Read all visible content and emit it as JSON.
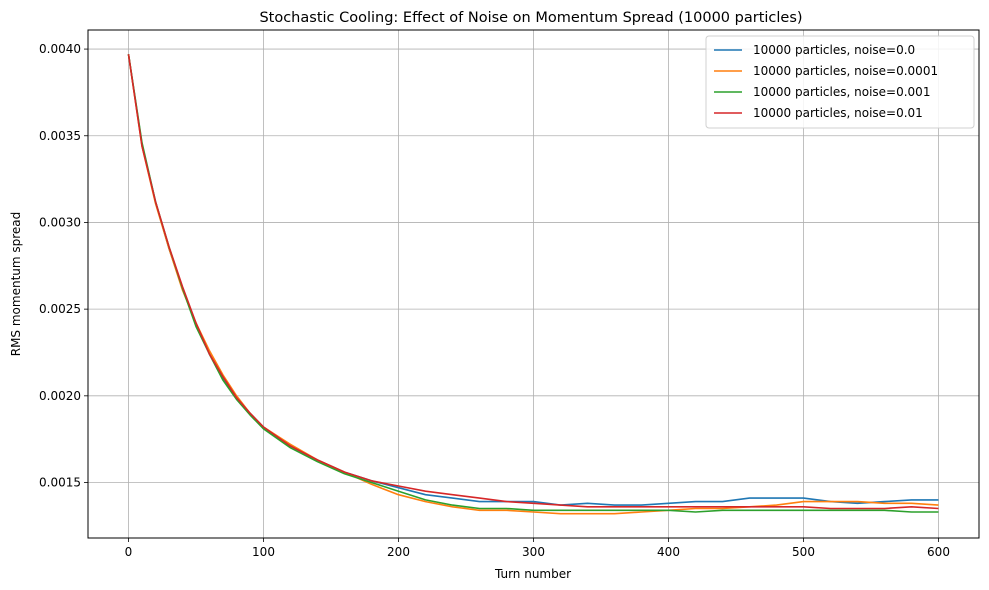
{
  "chart_data": {
    "type": "line",
    "title": "Stochastic Cooling: Effect of Noise on Momentum Spread (10000 particles)",
    "xlabel": "Turn number",
    "ylabel": "RMS momentum spread",
    "xlim": [
      -30,
      630
    ],
    "ylim": [
      0.00118,
      0.00411
    ],
    "xticks": [
      0,
      100,
      200,
      300,
      400,
      500,
      600
    ],
    "yticks": [
      0.0015,
      0.002,
      0.0025,
      0.003,
      0.0035,
      0.004
    ],
    "ytick_labels": [
      "0.0015",
      "0.0020",
      "0.0025",
      "0.0030",
      "0.0035",
      "0.0040"
    ],
    "grid": true,
    "legend": "top-right",
    "series": [
      {
        "name": "10000 particles, noise=0.0",
        "color": "#1f77b4",
        "x": [
          0,
          10,
          20,
          30,
          40,
          50,
          60,
          70,
          80,
          90,
          100,
          120,
          140,
          160,
          180,
          200,
          220,
          240,
          260,
          280,
          300,
          320,
          340,
          360,
          380,
          400,
          420,
          440,
          460,
          480,
          500,
          520,
          540,
          560,
          580,
          600
        ],
        "y": [
          0.00397,
          0.00345,
          0.00312,
          0.00285,
          0.00262,
          0.00241,
          0.00224,
          0.0021,
          0.00199,
          0.0019,
          0.00182,
          0.00171,
          0.00163,
          0.00156,
          0.00151,
          0.00147,
          0.00143,
          0.00141,
          0.00139,
          0.00139,
          0.00139,
          0.00137,
          0.00138,
          0.00137,
          0.00137,
          0.00138,
          0.00139,
          0.00139,
          0.00141,
          0.00141,
          0.00141,
          0.00139,
          0.00138,
          0.00139,
          0.0014,
          0.0014
        ]
      },
      {
        "name": "10000 particles, noise=0.0001",
        "color": "#ff7f0e",
        "x": [
          0,
          10,
          20,
          30,
          40,
          50,
          60,
          70,
          80,
          90,
          100,
          120,
          140,
          160,
          180,
          200,
          220,
          240,
          260,
          280,
          300,
          320,
          340,
          360,
          380,
          400,
          420,
          440,
          460,
          480,
          500,
          520,
          540,
          560,
          580,
          600
        ],
        "y": [
          0.00397,
          0.00344,
          0.00311,
          0.00285,
          0.00261,
          0.00242,
          0.00226,
          0.00212,
          0.002,
          0.0019,
          0.00182,
          0.00172,
          0.00163,
          0.00156,
          0.00149,
          0.00143,
          0.00139,
          0.00136,
          0.00134,
          0.00134,
          0.00133,
          0.00132,
          0.00132,
          0.00132,
          0.00133,
          0.00134,
          0.00135,
          0.00135,
          0.00136,
          0.00137,
          0.00139,
          0.00139,
          0.00139,
          0.00138,
          0.00138,
          0.00137
        ]
      },
      {
        "name": "10000 particles, noise=0.001",
        "color": "#2ca02c",
        "x": [
          0,
          10,
          20,
          30,
          40,
          50,
          60,
          70,
          80,
          90,
          100,
          120,
          140,
          160,
          180,
          200,
          220,
          240,
          260,
          280,
          300,
          320,
          340,
          360,
          380,
          400,
          420,
          440,
          460,
          480,
          500,
          520,
          540,
          560,
          580,
          600
        ],
        "y": [
          0.00397,
          0.00346,
          0.00312,
          0.00286,
          0.00262,
          0.0024,
          0.00224,
          0.00209,
          0.00198,
          0.00189,
          0.00181,
          0.0017,
          0.00162,
          0.00155,
          0.0015,
          0.00145,
          0.0014,
          0.00137,
          0.00135,
          0.00135,
          0.00134,
          0.00134,
          0.00134,
          0.00134,
          0.00134,
          0.00134,
          0.00133,
          0.00134,
          0.00134,
          0.00134,
          0.00134,
          0.00134,
          0.00134,
          0.00134,
          0.00133,
          0.00133
        ]
      },
      {
        "name": "10000 particles, noise=0.01",
        "color": "#d62728",
        "x": [
          0,
          10,
          20,
          30,
          40,
          50,
          60,
          70,
          80,
          90,
          100,
          120,
          140,
          160,
          180,
          200,
          220,
          240,
          260,
          280,
          300,
          320,
          340,
          360,
          380,
          400,
          420,
          440,
          460,
          480,
          500,
          520,
          540,
          560,
          580,
          600
        ],
        "y": [
          0.00397,
          0.00344,
          0.00312,
          0.00286,
          0.00263,
          0.00242,
          0.00224,
          0.00211,
          0.00199,
          0.0019,
          0.00182,
          0.00171,
          0.00163,
          0.00156,
          0.00151,
          0.00148,
          0.00145,
          0.00143,
          0.00141,
          0.00139,
          0.00138,
          0.00137,
          0.00136,
          0.00136,
          0.00136,
          0.00136,
          0.00136,
          0.00136,
          0.00136,
          0.00136,
          0.00136,
          0.00135,
          0.00135,
          0.00135,
          0.00136,
          0.00135
        ]
      }
    ]
  }
}
